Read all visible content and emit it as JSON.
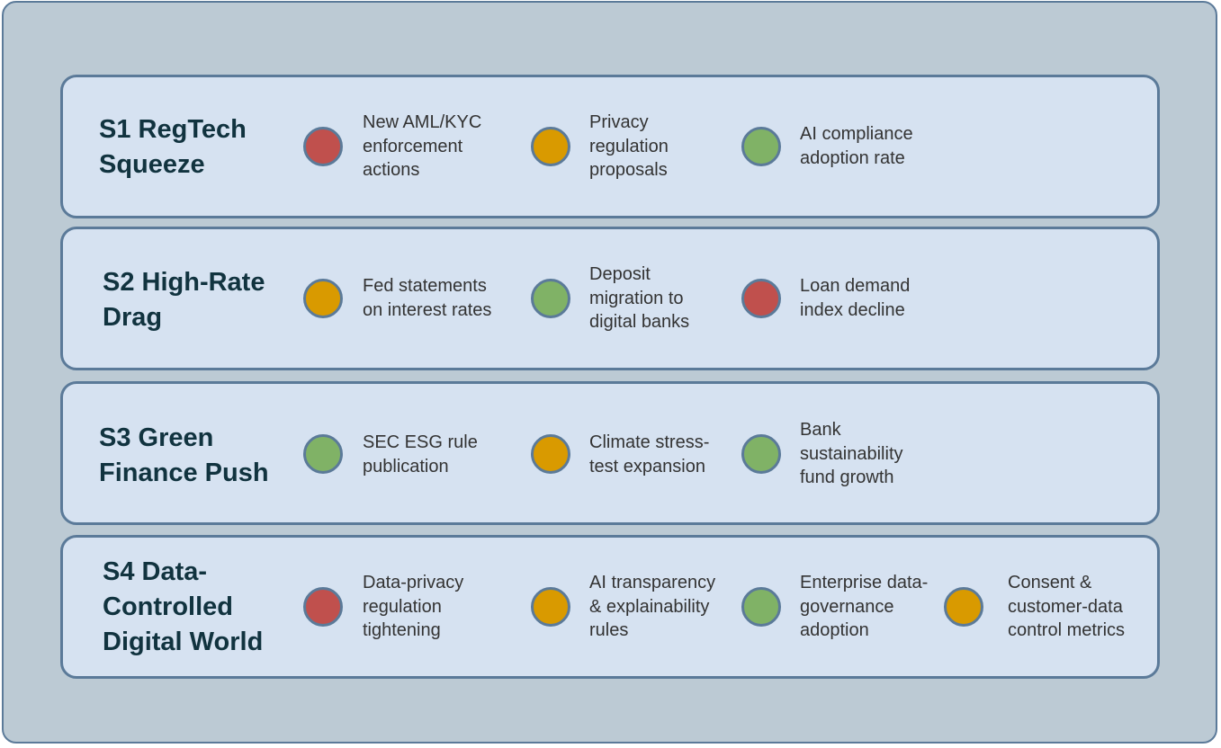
{
  "colors": {
    "red": "#c0504d",
    "amber": "#d99a00",
    "green": "#80b266",
    "row_fill": "#d6e2f1",
    "border": "#5b7a99",
    "background": "#bccad4"
  },
  "scenarios": [
    {
      "title": "S1 RegTech\nSqueeze",
      "indicators": [
        {
          "status": "red",
          "label": "New AML/KYC\nenforcement\nactions"
        },
        {
          "status": "amber",
          "label": "Privacy\nregulation\nproposals"
        },
        {
          "status": "green",
          "label": "AI compliance\nadoption rate"
        }
      ]
    },
    {
      "title": "S2 High-Rate\nDrag",
      "indicators": [
        {
          "status": "amber",
          "label": "Fed statements\non interest rates"
        },
        {
          "status": "green",
          "label": "Deposit\nmigration to\ndigital banks"
        },
        {
          "status": "red",
          "label": "Loan demand\nindex decline"
        }
      ]
    },
    {
      "title": "S3 Green\nFinance Push",
      "indicators": [
        {
          "status": "green",
          "label": "SEC ESG rule\npublication"
        },
        {
          "status": "amber",
          "label": "Climate stress-\ntest expansion"
        },
        {
          "status": "green",
          "label": "Bank\nsustainability\nfund growth"
        }
      ]
    },
    {
      "title": "S4 Data-\nControlled\nDigital World",
      "indicators": [
        {
          "status": "red",
          "label": "Data-privacy\nregulation\ntightening"
        },
        {
          "status": "amber",
          "label": "AI transparency\n& explainability\nrules"
        },
        {
          "status": "green",
          "label": "Enterprise data-\ngovernance\nadoption"
        },
        {
          "status": "amber",
          "label": "Consent &\ncustomer-data\ncontrol metrics"
        }
      ]
    }
  ]
}
